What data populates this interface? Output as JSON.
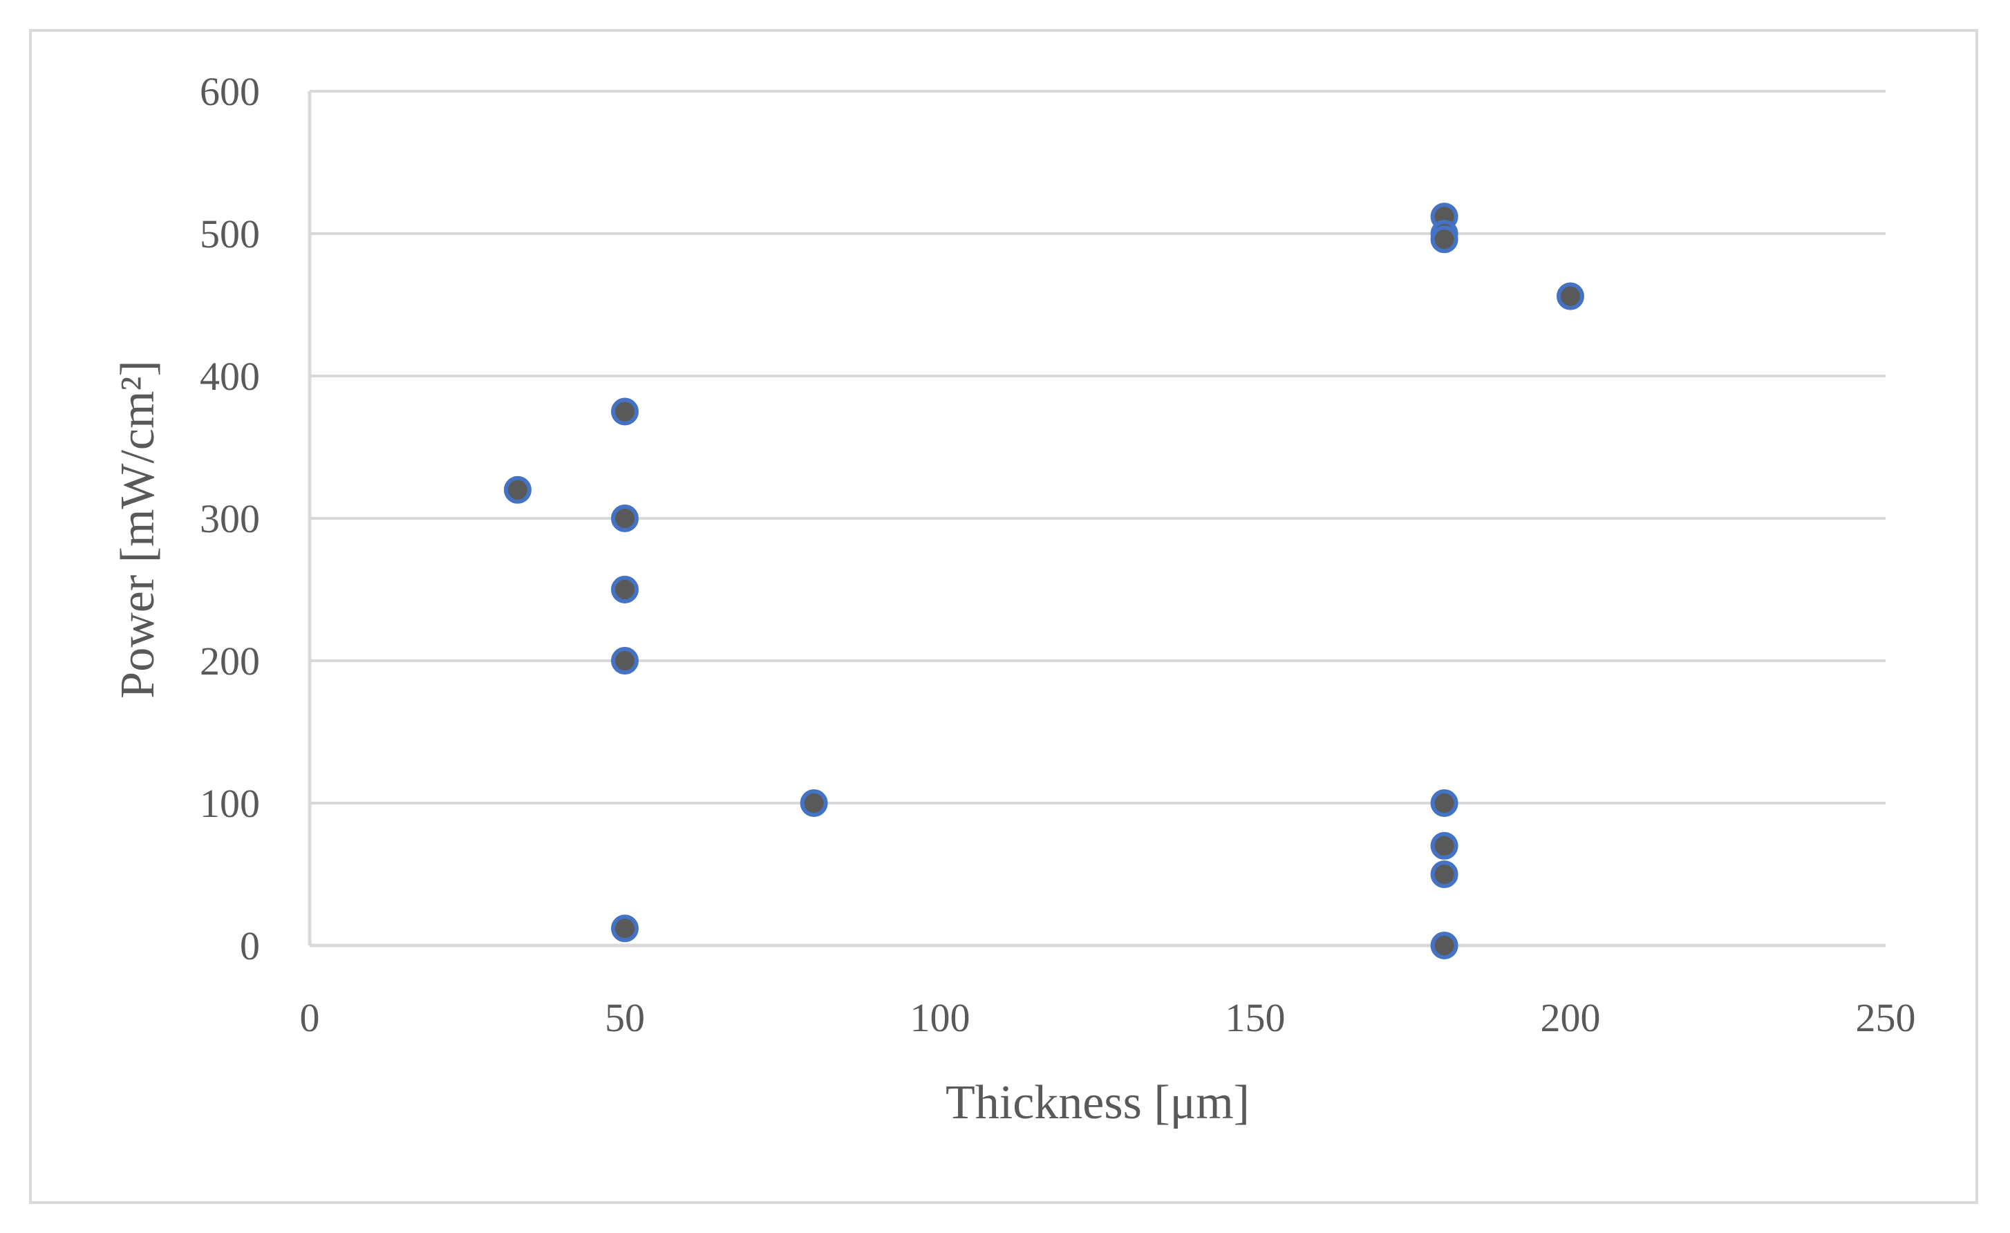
{
  "chart_data": {
    "type": "scatter",
    "title": "",
    "xlabel": "Thickness [μm]",
    "ylabel": "Power [mW/cm²]",
    "xlim": [
      0,
      250
    ],
    "ylim": [
      0,
      600
    ],
    "x_ticks": [
      0,
      50,
      100,
      150,
      200,
      250
    ],
    "y_ticks": [
      0,
      100,
      200,
      300,
      400,
      500,
      600
    ],
    "x_tick_labels": [
      "0",
      "50",
      "100",
      "150",
      "200",
      "250"
    ],
    "y_tick_labels": [
      "0",
      "100",
      "200",
      "300",
      "400",
      "500",
      "600"
    ],
    "grid": "horizontal",
    "legend": "none",
    "series": [
      {
        "points": [
          {
            "x": 33,
            "y": 320
          },
          {
            "x": 50,
            "y": 375
          },
          {
            "x": 50,
            "y": 300
          },
          {
            "x": 50,
            "y": 250
          },
          {
            "x": 50,
            "y": 200
          },
          {
            "x": 50,
            "y": 12
          },
          {
            "x": 80,
            "y": 100
          },
          {
            "x": 180,
            "y": 512
          },
          {
            "x": 180,
            "y": 500
          },
          {
            "x": 180,
            "y": 496
          },
          {
            "x": 180,
            "y": 100
          },
          {
            "x": 180,
            "y": 70
          },
          {
            "x": 180,
            "y": 50
          },
          {
            "x": 180,
            "y": 0
          },
          {
            "x": 200,
            "y": 456
          }
        ]
      }
    ],
    "colors": {
      "marker_fill": "#595959",
      "marker_stroke": "#4472c4",
      "gridline": "#d9d9d9",
      "axis_text": "#595959"
    }
  }
}
